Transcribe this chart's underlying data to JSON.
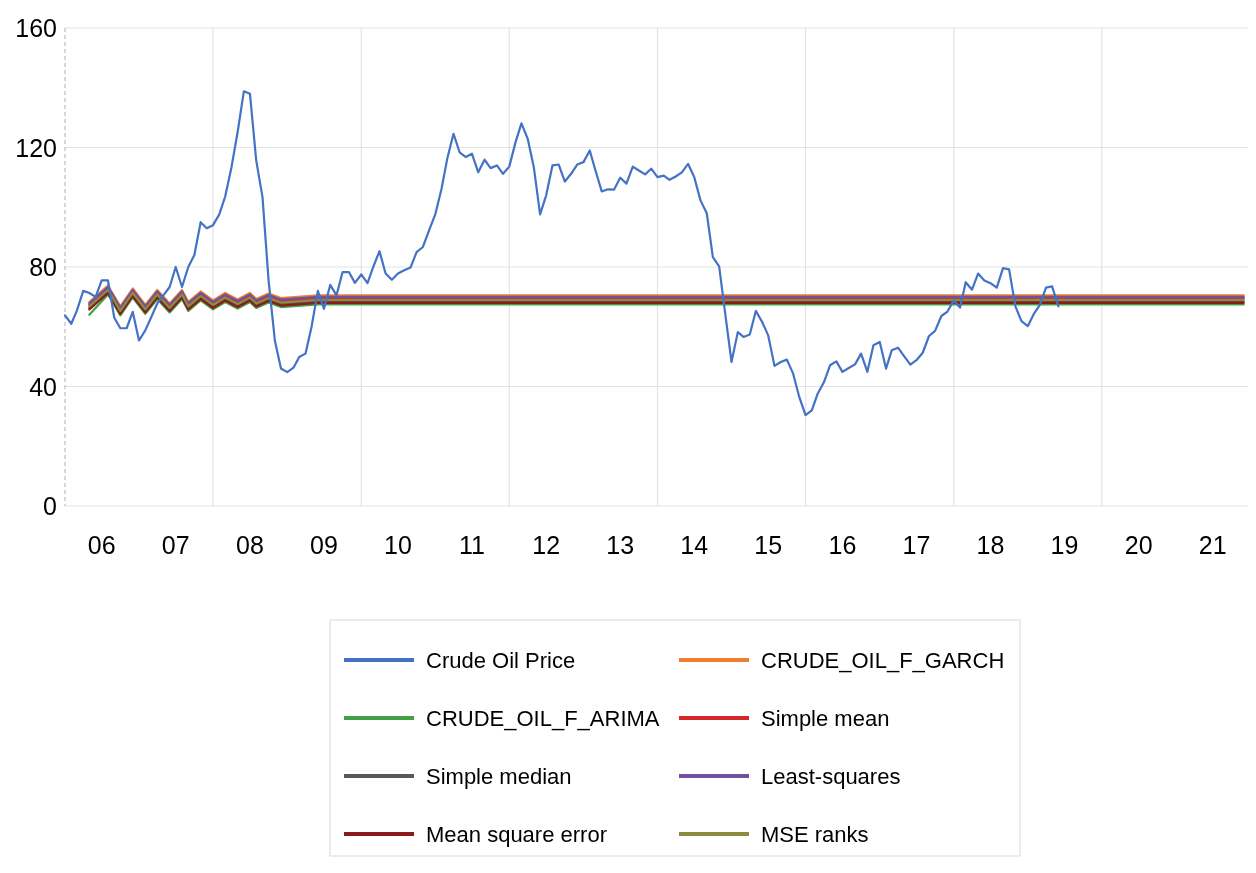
{
  "chart_data": {
    "type": "line",
    "xlim": [
      "2006-01",
      "2022-01"
    ],
    "ylim": [
      0,
      160
    ],
    "yticks": [
      0,
      40,
      80,
      120,
      160
    ],
    "xticks": [
      {
        "value": "2006-07",
        "label": "06"
      },
      {
        "value": "2007-07",
        "label": "07"
      },
      {
        "value": "2008-01",
        "label": null
      },
      {
        "value": "2008-07",
        "label": "08"
      },
      {
        "value": "2009-07",
        "label": "09"
      },
      {
        "value": "2010-01",
        "label": null
      },
      {
        "value": "2010-07",
        "label": "10"
      },
      {
        "value": "2011-07",
        "label": "11"
      },
      {
        "value": "2012-01",
        "label": null
      },
      {
        "value": "2012-07",
        "label": "12"
      },
      {
        "value": "2013-07",
        "label": "13"
      },
      {
        "value": "2014-01",
        "label": null
      },
      {
        "value": "2014-07",
        "label": "14"
      },
      {
        "value": "2015-07",
        "label": "15"
      },
      {
        "value": "2016-01",
        "label": null
      },
      {
        "value": "2016-07",
        "label": "16"
      },
      {
        "value": "2017-07",
        "label": "17"
      },
      {
        "value": "2018-01",
        "label": null
      },
      {
        "value": "2018-07",
        "label": "18"
      },
      {
        "value": "2019-07",
        "label": "19"
      },
      {
        "value": "2020-01",
        "label": null
      },
      {
        "value": "2020-07",
        "label": "20"
      },
      {
        "value": "2021-07",
        "label": "21"
      }
    ],
    "grid": true,
    "legend": "bottom",
    "marker": "none",
    "line_style": "solid",
    "series": [
      {
        "name": "CRUDE_OIL_F_GARCH",
        "color": "#ed7d31",
        "x": [
          "2006-05",
          "2006-08",
          "2006-10",
          "2006-12",
          "2007-02",
          "2007-04",
          "2007-06",
          "2007-08",
          "2007-09",
          "2007-11",
          "2008-01",
          "2008-03",
          "2008-05",
          "2008-07",
          "2008-08",
          "2008-10",
          "2008-12",
          "2009-06",
          "2021-12"
        ],
        "values": [
          68.3,
          73.8,
          66.8,
          72.8,
          67.3,
          72.3,
          67.8,
          72.3,
          68.3,
          71.8,
          68.8,
          71.3,
          69.1,
          71.3,
          69.3,
          71.1,
          69.6,
          70.5,
          70.5
        ]
      },
      {
        "name": "CRUDE_OIL_F_ARIMA",
        "color": "#43a047",
        "x": [
          "2006-05",
          "2006-08",
          "2006-10",
          "2006-12",
          "2007-02",
          "2007-04",
          "2007-06",
          "2007-08",
          "2007-09",
          "2007-11",
          "2008-01",
          "2008-03",
          "2008-05",
          "2008-07",
          "2008-08",
          "2008-10",
          "2008-12",
          "2009-06",
          "2021-12"
        ],
        "values": [
          64,
          70.8,
          63.8,
          69.8,
          64.3,
          69.3,
          64.8,
          69.3,
          65.3,
          68.8,
          65.8,
          68.3,
          66.1,
          68.3,
          66.3,
          68.1,
          66.6,
          67.5,
          67.5
        ]
      },
      {
        "name": "Simple mean",
        "color": "#d62728",
        "x": [
          "2006-05",
          "2006-08",
          "2006-10",
          "2006-12",
          "2007-02",
          "2007-04",
          "2007-06",
          "2007-08",
          "2007-09",
          "2007-11",
          "2008-01",
          "2008-03",
          "2008-05",
          "2008-07",
          "2008-08",
          "2008-10",
          "2008-12",
          "2009-06",
          "2021-12"
        ],
        "values": [
          67.3,
          72.8,
          65.8,
          71.8,
          66.3,
          71.3,
          66.8,
          71.3,
          67.3,
          70.8,
          67.8,
          70.3,
          68.1,
          70.3,
          68.3,
          70.1,
          68.6,
          69.5,
          69.5
        ]
      },
      {
        "name": "Simple median",
        "color": "#595959",
        "x": [
          "2006-05",
          "2006-08",
          "2006-10",
          "2006-12",
          "2007-02",
          "2007-04",
          "2007-06",
          "2007-08",
          "2007-09",
          "2007-11",
          "2008-01",
          "2008-03",
          "2008-05",
          "2008-07",
          "2008-08",
          "2008-10",
          "2008-12",
          "2009-06",
          "2021-12"
        ],
        "values": [
          66.3,
          71.8,
          64.8,
          70.8,
          65.3,
          70.3,
          65.8,
          70.3,
          66.3,
          69.8,
          66.8,
          69.3,
          67.1,
          69.3,
          67.3,
          69.1,
          67.6,
          68.5,
          68.5
        ]
      },
      {
        "name": "Least-squares",
        "color": "#7050a0",
        "x": [
          "2006-05",
          "2006-08",
          "2006-10",
          "2006-12",
          "2007-02",
          "2007-04",
          "2007-06",
          "2007-08",
          "2007-09",
          "2007-11",
          "2008-01",
          "2008-03",
          "2008-05",
          "2008-07",
          "2008-08",
          "2008-10",
          "2008-12",
          "2009-06",
          "2021-12"
        ],
        "values": [
          67.8,
          73.3,
          66.3,
          72.3,
          66.8,
          71.8,
          67.3,
          71.8,
          67.8,
          71.3,
          68.3,
          70.8,
          68.6,
          70.8,
          68.8,
          70.6,
          69.1,
          70,
          70
        ]
      },
      {
        "name": "Mean square error",
        "color": "#8b1a1a",
        "x": [
          "2006-05",
          "2006-08",
          "2006-10",
          "2006-12",
          "2007-02",
          "2007-04",
          "2007-06",
          "2007-08",
          "2007-09",
          "2007-11",
          "2008-01",
          "2008-03",
          "2008-05",
          "2008-07",
          "2008-08",
          "2008-10",
          "2008-12",
          "2009-06",
          "2021-12"
        ],
        "values": [
          65.8,
          71.3,
          64.3,
          70.3,
          64.8,
          69.8,
          65.3,
          69.8,
          65.8,
          69.3,
          66.3,
          68.8,
          66.6,
          68.8,
          66.8,
          68.6,
          67.1,
          68,
          68
        ]
      },
      {
        "name": "MSE ranks",
        "color": "#8c8c3c",
        "x": [
          "2006-05",
          "2006-08",
          "2006-10",
          "2006-12",
          "2007-02",
          "2007-04",
          "2007-06",
          "2007-08",
          "2007-09",
          "2007-11",
          "2008-01",
          "2008-03",
          "2008-05",
          "2008-07",
          "2008-08",
          "2008-10",
          "2008-12",
          "2009-06",
          "2021-12"
        ],
        "values": [
          66.8,
          72.3,
          65.3,
          71.3,
          65.8,
          70.8,
          66.3,
          70.8,
          66.8,
          70.3,
          67.3,
          69.8,
          67.6,
          69.8,
          67.8,
          69.6,
          68.1,
          69,
          69
        ]
      },
      {
        "name": "Crude Oil Price",
        "color": "#4472c4",
        "x": [
          "2006-01",
          "2006-02",
          "2006-03",
          "2006-04",
          "2006-05",
          "2006-06",
          "2006-07",
          "2006-08",
          "2006-09",
          "2006-10",
          "2006-11",
          "2006-12",
          "2007-01",
          "2007-02",
          "2007-03",
          "2007-04",
          "2007-05",
          "2007-06",
          "2007-07",
          "2007-08",
          "2007-09",
          "2007-10",
          "2007-11",
          "2007-12",
          "2008-01",
          "2008-02",
          "2008-03",
          "2008-04",
          "2008-05",
          "2008-06",
          "2008-07",
          "2008-08",
          "2008-09",
          "2008-10",
          "2008-11",
          "2008-12",
          "2009-01",
          "2009-02",
          "2009-03",
          "2009-04",
          "2009-05",
          "2009-06",
          "2009-07",
          "2009-08",
          "2009-09",
          "2009-10",
          "2009-11",
          "2009-12",
          "2010-01",
          "2010-02",
          "2010-03",
          "2010-04",
          "2010-05",
          "2010-06",
          "2010-07",
          "2010-08",
          "2010-09",
          "2010-10",
          "2010-11",
          "2010-12",
          "2011-01",
          "2011-02",
          "2011-03",
          "2011-04",
          "2011-05",
          "2011-06",
          "2011-07",
          "2011-08",
          "2011-09",
          "2011-10",
          "2011-11",
          "2011-12",
          "2012-01",
          "2012-02",
          "2012-03",
          "2012-04",
          "2012-05",
          "2012-06",
          "2012-07",
          "2012-08",
          "2012-09",
          "2012-10",
          "2012-11",
          "2012-12",
          "2013-01",
          "2013-02",
          "2013-03",
          "2013-04",
          "2013-05",
          "2013-06",
          "2013-07",
          "2013-08",
          "2013-09",
          "2013-10",
          "2013-11",
          "2013-12",
          "2014-01",
          "2014-02",
          "2014-03",
          "2014-04",
          "2014-05",
          "2014-06",
          "2014-07",
          "2014-08",
          "2014-09",
          "2014-10",
          "2014-11",
          "2014-12",
          "2015-01",
          "2015-02",
          "2015-03",
          "2015-04",
          "2015-05",
          "2015-06",
          "2015-07",
          "2015-08",
          "2015-09",
          "2015-10",
          "2015-11",
          "2015-12",
          "2016-01",
          "2016-02",
          "2016-03",
          "2016-04",
          "2016-05",
          "2016-06",
          "2016-07",
          "2016-08",
          "2016-09",
          "2016-10",
          "2016-11",
          "2016-12",
          "2017-01",
          "2017-02",
          "2017-03",
          "2017-04",
          "2017-05",
          "2017-06",
          "2017-07",
          "2017-08",
          "2017-09",
          "2017-10",
          "2017-11",
          "2017-12",
          "2018-01",
          "2018-02",
          "2018-03",
          "2018-04",
          "2018-05",
          "2018-06",
          "2018-07",
          "2018-08",
          "2018-09",
          "2018-10",
          "2018-11",
          "2018-12",
          "2019-01",
          "2019-02",
          "2019-03",
          "2019-04",
          "2019-05",
          "2019-06"
        ],
        "values": [
          63.8,
          61,
          65.5,
          72,
          71.3,
          70,
          75.5,
          75.5,
          63,
          59.5,
          59.5,
          65,
          55.4,
          58.8,
          63,
          67.8,
          70.5,
          73.3,
          80,
          73.3,
          80,
          84,
          95,
          93,
          94,
          97.6,
          103.6,
          113.4,
          125,
          138.8,
          138,
          115.7,
          103.4,
          75.5,
          55.4,
          46,
          44.8,
          46.3,
          49.9,
          51,
          60,
          72,
          66,
          74,
          70.5,
          78.3,
          78.3,
          74.7,
          77.5,
          74.6,
          80,
          85.3,
          77.8,
          75.7,
          77.8,
          78.9,
          79.8,
          85,
          86.7,
          92.2,
          97.6,
          106.2,
          116.2,
          124.6,
          118.4,
          116.8,
          117.9,
          111.7,
          115.9,
          113.1,
          114,
          111.2,
          113.6,
          121.8,
          128.1,
          122.9,
          113.4,
          97.6,
          104,
          114,
          114.3,
          108.6,
          111.2,
          114.3,
          115.1,
          119,
          112.3,
          105.3,
          106,
          105.9,
          109.9,
          107.9,
          113.6,
          112.3,
          111,
          112.9,
          110.1,
          110.6,
          109.2,
          110.3,
          111.7,
          114.5,
          110.1,
          102.3,
          98,
          83.3,
          80.2,
          64.4,
          48.2,
          58.2,
          56.6,
          57.4,
          65.3,
          61.6,
          57.1,
          46.9,
          48.2,
          49,
          44.3,
          36.5,
          30.4,
          32,
          37.6,
          41.5,
          47.1,
          48.4,
          44.9,
          46.2,
          47.4,
          51,
          44.9,
          53.8,
          54.9,
          46,
          52.1,
          53,
          50.2,
          47.3,
          48.8,
          51.3,
          56.9,
          58.6,
          63.6,
          65.1,
          68.8,
          66.4,
          74.9,
          72.4,
          77.8,
          75.5,
          74.6,
          73.1,
          79.6,
          79.2,
          66.8,
          61.9,
          60.2,
          64.4,
          67.2,
          73.1,
          73.5,
          66.8
        ]
      }
    ]
  }
}
